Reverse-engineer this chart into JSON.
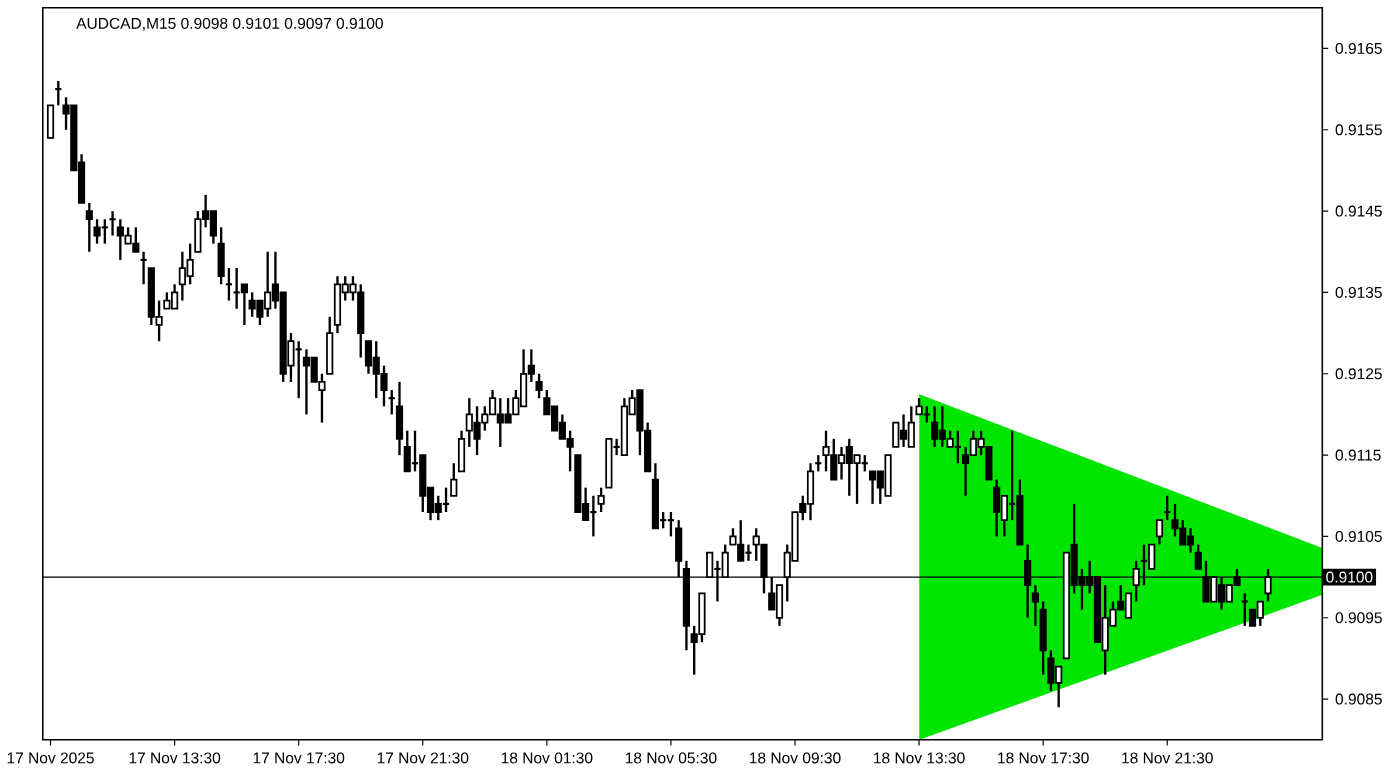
{
  "chart_data": {
    "type": "candlestick",
    "title": "AUDCAD,M15  0.9098 0.9101 0.9097 0.9100",
    "x": [
      "2025-11-17T09:30",
      "2025-11-17T09:45",
      "2025-11-17T10:00",
      "2025-11-17T10:15",
      "2025-11-17T10:30",
      "2025-11-17T10:45",
      "2025-11-17T11:00",
      "2025-11-17T11:15",
      "2025-11-17T11:30",
      "2025-11-17T11:45",
      "2025-11-17T12:00",
      "2025-11-17T12:15",
      "2025-11-17T12:30",
      "2025-11-17T12:45",
      "2025-11-17T13:00",
      "2025-11-17T13:15",
      "2025-11-17T13:30",
      "2025-11-17T13:45",
      "2025-11-17T14:00",
      "2025-11-17T14:15",
      "2025-11-17T14:30",
      "2025-11-17T14:45",
      "2025-11-17T15:00",
      "2025-11-17T15:15",
      "2025-11-17T15:30",
      "2025-11-17T15:45",
      "2025-11-17T16:00",
      "2025-11-17T16:15",
      "2025-11-17T16:30",
      "2025-11-17T16:45",
      "2025-11-17T17:00",
      "2025-11-17T17:15",
      "2025-11-17T17:30",
      "2025-11-17T17:45",
      "2025-11-17T18:00",
      "2025-11-17T18:15",
      "2025-11-17T18:30",
      "2025-11-17T18:45",
      "2025-11-17T19:00",
      "2025-11-17T19:15",
      "2025-11-17T19:30",
      "2025-11-17T19:45",
      "2025-11-17T20:00",
      "2025-11-17T20:15",
      "2025-11-17T20:30",
      "2025-11-17T20:45",
      "2025-11-17T21:00",
      "2025-11-17T21:15",
      "2025-11-17T21:30",
      "2025-11-17T21:45",
      "2025-11-17T22:00",
      "2025-11-17T22:15",
      "2025-11-17T22:30",
      "2025-11-17T22:45",
      "2025-11-17T23:00",
      "2025-11-17T23:15",
      "2025-11-17T23:30",
      "2025-11-17T23:45",
      "2025-11-18T00:00",
      "2025-11-18T00:15",
      "2025-11-18T00:30",
      "2025-11-18T00:45",
      "2025-11-18T01:00",
      "2025-11-18T01:15",
      "2025-11-18T01:30",
      "2025-11-18T01:45",
      "2025-11-18T02:00",
      "2025-11-18T02:15",
      "2025-11-18T02:30",
      "2025-11-18T02:45",
      "2025-11-18T03:00",
      "2025-11-18T03:15",
      "2025-11-18T03:30",
      "2025-11-18T03:45",
      "2025-11-18T04:00",
      "2025-11-18T04:15",
      "2025-11-18T04:30",
      "2025-11-18T04:45",
      "2025-11-18T05:00",
      "2025-11-18T05:15",
      "2025-11-18T05:30",
      "2025-11-18T05:45",
      "2025-11-18T06:00",
      "2025-11-18T06:15",
      "2025-11-18T06:30",
      "2025-11-18T06:45",
      "2025-11-18T07:00",
      "2025-11-18T07:15",
      "2025-11-18T07:30",
      "2025-11-18T07:45",
      "2025-11-18T08:00",
      "2025-11-18T08:15",
      "2025-11-18T08:30",
      "2025-11-18T08:45",
      "2025-11-18T09:00",
      "2025-11-18T09:15",
      "2025-11-18T09:30",
      "2025-11-18T09:45",
      "2025-11-18T10:00",
      "2025-11-18T10:15",
      "2025-11-18T10:30",
      "2025-11-18T10:45",
      "2025-11-18T11:00",
      "2025-11-18T11:15",
      "2025-11-18T11:30",
      "2025-11-18T11:45",
      "2025-11-18T12:00",
      "2025-11-18T12:15",
      "2025-11-18T12:30",
      "2025-11-18T12:45",
      "2025-11-18T13:00",
      "2025-11-18T13:15",
      "2025-11-18T13:30",
      "2025-11-18T13:45",
      "2025-11-18T14:00",
      "2025-11-18T14:15",
      "2025-11-18T14:30",
      "2025-11-18T14:45",
      "2025-11-18T15:00",
      "2025-11-18T15:15",
      "2025-11-18T15:30",
      "2025-11-18T15:45",
      "2025-11-18T16:00",
      "2025-11-18T16:15",
      "2025-11-18T16:30",
      "2025-11-18T16:45",
      "2025-11-18T17:00",
      "2025-11-18T17:15",
      "2025-11-18T17:30",
      "2025-11-18T17:45",
      "2025-11-18T18:00",
      "2025-11-18T18:15",
      "2025-11-18T18:30",
      "2025-11-18T18:45",
      "2025-11-18T19:00",
      "2025-11-18T19:15",
      "2025-11-18T19:30",
      "2025-11-18T19:45",
      "2025-11-18T20:00",
      "2025-11-18T20:15",
      "2025-11-18T20:30",
      "2025-11-18T20:45",
      "2025-11-18T21:00",
      "2025-11-18T21:15",
      "2025-11-18T21:30",
      "2025-11-18T21:45",
      "2025-11-18T22:00",
      "2025-11-18T22:15",
      "2025-11-18T22:30",
      "2025-11-18T22:45",
      "2025-11-18T23:00",
      "2025-11-18T23:15",
      "2025-11-18T23:30",
      "2025-11-18T23:45",
      "2025-11-19T00:00",
      "2025-11-19T00:15",
      "2025-11-19T00:30",
      "2025-11-19T00:45"
    ],
    "ohlc": [
      [
        0.9154,
        0.9158,
        0.9154,
        0.9158
      ],
      [
        0.916,
        0.9161,
        0.9158,
        0.916
      ],
      [
        0.9158,
        0.9159,
        0.9155,
        0.9157
      ],
      [
        0.9158,
        0.9158,
        0.915,
        0.915
      ],
      [
        0.9151,
        0.9152,
        0.9146,
        0.9146
      ],
      [
        0.9145,
        0.9146,
        0.914,
        0.9144
      ],
      [
        0.9143,
        0.9144,
        0.9141,
        0.9142
      ],
      [
        0.9143,
        0.9144,
        0.9141,
        0.9143
      ],
      [
        0.9144,
        0.9145,
        0.9142,
        0.9144
      ],
      [
        0.9143,
        0.9144,
        0.9139,
        0.9142
      ],
      [
        0.9141,
        0.9143,
        0.9141,
        0.9142
      ],
      [
        0.9141,
        0.9143,
        0.914,
        0.914
      ],
      [
        0.9139,
        0.914,
        0.9136,
        0.9139
      ],
      [
        0.9138,
        0.9138,
        0.9131,
        0.9132
      ],
      [
        0.9131,
        0.9134,
        0.9129,
        0.9132
      ],
      [
        0.9133,
        0.9135,
        0.9133,
        0.9134
      ],
      [
        0.9133,
        0.9136,
        0.9133,
        0.9135
      ],
      [
        0.9136,
        0.914,
        0.9134,
        0.9138
      ],
      [
        0.9137,
        0.9141,
        0.9136,
        0.9139
      ],
      [
        0.914,
        0.9145,
        0.914,
        0.9144
      ],
      [
        0.9145,
        0.9147,
        0.9143,
        0.9144
      ],
      [
        0.9145,
        0.9145,
        0.9141,
        0.9142
      ],
      [
        0.9141,
        0.9143,
        0.9136,
        0.9137
      ],
      [
        0.9136,
        0.9138,
        0.9134,
        0.9136
      ],
      [
        0.9135,
        0.9138,
        0.9133,
        0.9135
      ],
      [
        0.9136,
        0.9136,
        0.9131,
        0.9135
      ],
      [
        0.9134,
        0.9135,
        0.9132,
        0.9133
      ],
      [
        0.9134,
        0.9134,
        0.9131,
        0.9132
      ],
      [
        0.9133,
        0.914,
        0.9132,
        0.9135
      ],
      [
        0.9136,
        0.914,
        0.9133,
        0.9134
      ],
      [
        0.9135,
        0.9135,
        0.9124,
        0.9125
      ],
      [
        0.9126,
        0.913,
        0.9124,
        0.9129
      ],
      [
        0.9128,
        0.9129,
        0.9122,
        0.9128
      ],
      [
        0.9127,
        0.9128,
        0.912,
        0.9126
      ],
      [
        0.9127,
        0.9127,
        0.9124,
        0.9124
      ],
      [
        0.9123,
        0.9125,
        0.9119,
        0.9124
      ],
      [
        0.9125,
        0.9132,
        0.9125,
        0.913
      ],
      [
        0.9131,
        0.9137,
        0.913,
        0.9136
      ],
      [
        0.9135,
        0.9137,
        0.9134,
        0.9136
      ],
      [
        0.9135,
        0.9137,
        0.9134,
        0.9136
      ],
      [
        0.9135,
        0.9136,
        0.9127,
        0.913
      ],
      [
        0.9129,
        0.9129,
        0.9125,
        0.9126
      ],
      [
        0.9127,
        0.9129,
        0.9122,
        0.9125
      ],
      [
        0.9125,
        0.9126,
        0.9121,
        0.9123
      ],
      [
        0.9122,
        0.9123,
        0.912,
        0.9122
      ],
      [
        0.9121,
        0.9124,
        0.9115,
        0.9117
      ],
      [
        0.9116,
        0.9118,
        0.9113,
        0.9113
      ],
      [
        0.9114,
        0.9118,
        0.9113,
        0.9114
      ],
      [
        0.9115,
        0.9115,
        0.9108,
        0.911
      ],
      [
        0.9111,
        0.9111,
        0.9107,
        0.9108
      ],
      [
        0.9109,
        0.911,
        0.9107,
        0.9108
      ],
      [
        0.9109,
        0.9111,
        0.9108,
        0.9109
      ],
      [
        0.911,
        0.9114,
        0.911,
        0.9112
      ],
      [
        0.9113,
        0.9118,
        0.9113,
        0.9117
      ],
      [
        0.9118,
        0.9122,
        0.9116,
        0.912
      ],
      [
        0.9119,
        0.9121,
        0.9115,
        0.9117
      ],
      [
        0.9119,
        0.9121,
        0.9118,
        0.912
      ],
      [
        0.912,
        0.9123,
        0.912,
        0.9122
      ],
      [
        0.912,
        0.9122,
        0.9116,
        0.9119
      ],
      [
        0.912,
        0.9122,
        0.9119,
        0.9119
      ],
      [
        0.912,
        0.9123,
        0.912,
        0.9122
      ],
      [
        0.9121,
        0.9128,
        0.9121,
        0.9125
      ],
      [
        0.9126,
        0.9128,
        0.9124,
        0.9125
      ],
      [
        0.9124,
        0.9125,
        0.9122,
        0.9123
      ],
      [
        0.9122,
        0.9123,
        0.912,
        0.912
      ],
      [
        0.9121,
        0.9121,
        0.9118,
        0.9118
      ],
      [
        0.9119,
        0.912,
        0.9117,
        0.9117
      ],
      [
        0.9117,
        0.9118,
        0.9113,
        0.9116
      ],
      [
        0.9115,
        0.9115,
        0.9108,
        0.9108
      ],
      [
        0.9109,
        0.9111,
        0.9107,
        0.9107
      ],
      [
        0.9108,
        0.911,
        0.9105,
        0.9108
      ],
      [
        0.9109,
        0.9111,
        0.9108,
        0.911
      ],
      [
        0.9111,
        0.9117,
        0.9111,
        0.9117
      ],
      [
        0.9116,
        0.9117,
        0.9115,
        0.9116
      ],
      [
        0.9115,
        0.9122,
        0.9115,
        0.9121
      ],
      [
        0.912,
        0.9123,
        0.912,
        0.9122
      ],
      [
        0.9123,
        0.9123,
        0.9115,
        0.9118
      ],
      [
        0.9118,
        0.9119,
        0.9113,
        0.9113
      ],
      [
        0.9112,
        0.9114,
        0.9106,
        0.9106
      ],
      [
        0.9107,
        0.9108,
        0.9106,
        0.9107
      ],
      [
        0.9107,
        0.9108,
        0.9105,
        0.9107
      ],
      [
        0.9106,
        0.9107,
        0.91,
        0.9102
      ],
      [
        0.9101,
        0.9102,
        0.9091,
        0.9094
      ],
      [
        0.9093,
        0.9094,
        0.9088,
        0.9092
      ],
      [
        0.9093,
        0.9098,
        0.9092,
        0.9098
      ],
      [
        0.91,
        0.9103,
        0.91,
        0.9103
      ],
      [
        0.9101,
        0.9102,
        0.9097,
        0.9101
      ],
      [
        0.91,
        0.9104,
        0.91,
        0.9103
      ],
      [
        0.9104,
        0.9106,
        0.9104,
        0.9105
      ],
      [
        0.9104,
        0.9107,
        0.9102,
        0.9102
      ],
      [
        0.9103,
        0.9104,
        0.9102,
        0.9103
      ],
      [
        0.9104,
        0.9106,
        0.9102,
        0.9105
      ],
      [
        0.9104,
        0.9104,
        0.9098,
        0.91
      ],
      [
        0.9098,
        0.91,
        0.9096,
        0.9096
      ],
      [
        0.9095,
        0.9099,
        0.9094,
        0.9099
      ],
      [
        0.91,
        0.9104,
        0.9097,
        0.9103
      ],
      [
        0.9102,
        0.9108,
        0.9102,
        0.9108
      ],
      [
        0.9109,
        0.911,
        0.9107,
        0.9108
      ],
      [
        0.9109,
        0.9114,
        0.9107,
        0.9113
      ],
      [
        0.9114,
        0.9115,
        0.9113,
        0.9114
      ],
      [
        0.9115,
        0.9118,
        0.9113,
        0.9116
      ],
      [
        0.9115,
        0.9117,
        0.9112,
        0.9112
      ],
      [
        0.9114,
        0.9116,
        0.9112,
        0.9115
      ],
      [
        0.9116,
        0.9117,
        0.911,
        0.9114
      ],
      [
        0.9114,
        0.9115,
        0.9109,
        0.9115
      ],
      [
        0.9114,
        0.9115,
        0.9113,
        0.9114
      ],
      [
        0.9113,
        0.9113,
        0.9109,
        0.9112
      ],
      [
        0.9113,
        0.9113,
        0.9109,
        0.9111
      ],
      [
        0.911,
        0.9115,
        0.911,
        0.9115
      ],
      [
        0.9116,
        0.9119,
        0.9116,
        0.9119
      ],
      [
        0.9118,
        0.912,
        0.9116,
        0.9117
      ],
      [
        0.9116,
        0.9121,
        0.9116,
        0.9119
      ],
      [
        0.912,
        0.9122,
        0.912,
        0.9121
      ],
      [
        0.912,
        0.9121,
        0.9119,
        0.912
      ],
      [
        0.9119,
        0.9121,
        0.9116,
        0.9117
      ],
      [
        0.9118,
        0.9121,
        0.9116,
        0.9117
      ],
      [
        0.9116,
        0.9118,
        0.9116,
        0.9117
      ],
      [
        0.9116,
        0.9118,
        0.9114,
        0.9116
      ],
      [
        0.9115,
        0.9116,
        0.911,
        0.9114
      ],
      [
        0.9115,
        0.9118,
        0.9115,
        0.9117
      ],
      [
        0.9116,
        0.9118,
        0.9115,
        0.9117
      ],
      [
        0.9116,
        0.9116,
        0.9112,
        0.9112
      ],
      [
        0.9111,
        0.9112,
        0.9105,
        0.9108
      ],
      [
        0.9107,
        0.911,
        0.9105,
        0.911
      ],
      [
        0.9109,
        0.9118,
        0.9107,
        0.9109
      ],
      [
        0.911,
        0.9112,
        0.9104,
        0.9104
      ],
      [
        0.9102,
        0.9104,
        0.9095,
        0.9099
      ],
      [
        0.9098,
        0.9099,
        0.9094,
        0.9097
      ],
      [
        0.9096,
        0.9097,
        0.9088,
        0.9091
      ],
      [
        0.909,
        0.9091,
        0.9086,
        0.9087
      ],
      [
        0.9087,
        0.9089,
        0.9084,
        0.9089
      ],
      [
        0.909,
        0.9103,
        0.909,
        0.9103
      ],
      [
        0.9104,
        0.9109,
        0.9098,
        0.9099
      ],
      [
        0.91,
        0.9101,
        0.9096,
        0.9099
      ],
      [
        0.91,
        0.9102,
        0.9098,
        0.9099
      ],
      [
        0.91,
        0.91,
        0.9092,
        0.9092
      ],
      [
        0.9091,
        0.9099,
        0.9088,
        0.9095
      ],
      [
        0.9094,
        0.9097,
        0.9094,
        0.9096
      ],
      [
        0.9097,
        0.9099,
        0.9096,
        0.9096
      ],
      [
        0.9095,
        0.9098,
        0.9095,
        0.9098
      ],
      [
        0.9099,
        0.9102,
        0.9097,
        0.9101
      ],
      [
        0.9102,
        0.9104,
        0.9099,
        0.9102
      ],
      [
        0.9101,
        0.9104,
        0.9101,
        0.9104
      ],
      [
        0.9105,
        0.9107,
        0.9104,
        0.9107
      ],
      [
        0.9108,
        0.911,
        0.9107,
        0.9108
      ],
      [
        0.9107,
        0.9109,
        0.9105,
        0.9106
      ],
      [
        0.9106,
        0.9107,
        0.9104,
        0.9104
      ],
      [
        0.9105,
        0.9106,
        0.9103,
        0.9104
      ],
      [
        0.9103,
        0.9104,
        0.9101,
        0.9101
      ],
      [
        0.91,
        0.9102,
        0.9097,
        0.9097
      ],
      [
        0.9097,
        0.91,
        0.9097,
        0.91
      ],
      [
        0.9099,
        0.91,
        0.9096,
        0.9097
      ],
      [
        0.9097,
        0.9099,
        0.9097,
        0.9099
      ],
      [
        0.91,
        0.9101,
        0.9099,
        0.9099
      ],
      [
        0.9097,
        0.9098,
        0.9094,
        0.9097
      ],
      [
        0.9096,
        0.9096,
        0.9094,
        0.9094
      ],
      [
        0.9095,
        0.9097,
        0.9094,
        0.9097
      ],
      [
        0.9098,
        0.9101,
        0.9097,
        0.91
      ]
    ],
    "xlim": [
      "2025-11-17T09:15",
      "2025-11-19T02:30"
    ],
    "xticks": [
      {
        "value": "2025-11-17T09:30",
        "label": "17 Nov 2025"
      },
      {
        "value": "2025-11-17T13:30",
        "label": "17 Nov 13:30"
      },
      {
        "value": "2025-11-17T17:30",
        "label": "17 Nov 17:30"
      },
      {
        "value": "2025-11-17T21:30",
        "label": "17 Nov 21:30"
      },
      {
        "value": "2025-11-18T01:30",
        "label": "18 Nov 01:30"
      },
      {
        "value": "2025-11-18T05:30",
        "label": "18 Nov 05:30"
      },
      {
        "value": "2025-11-18T09:30",
        "label": "18 Nov 09:30"
      },
      {
        "value": "2025-11-18T13:30",
        "label": "18 Nov 13:30"
      },
      {
        "value": "2025-11-18T17:30",
        "label": "18 Nov 17:30"
      },
      {
        "value": "2025-11-18T21:30",
        "label": "18 Nov 21:30"
      }
    ],
    "ylim": [
      0.908,
      0.917
    ],
    "yticks": [
      0.9085,
      0.9095,
      0.9105,
      0.9115,
      0.9125,
      0.9135,
      0.9145,
      0.9155,
      0.9165
    ],
    "ref_lines": [
      {
        "axis": "y",
        "value": 0.91,
        "label": "0.9100",
        "color": "#000000"
      }
    ]
  }
}
